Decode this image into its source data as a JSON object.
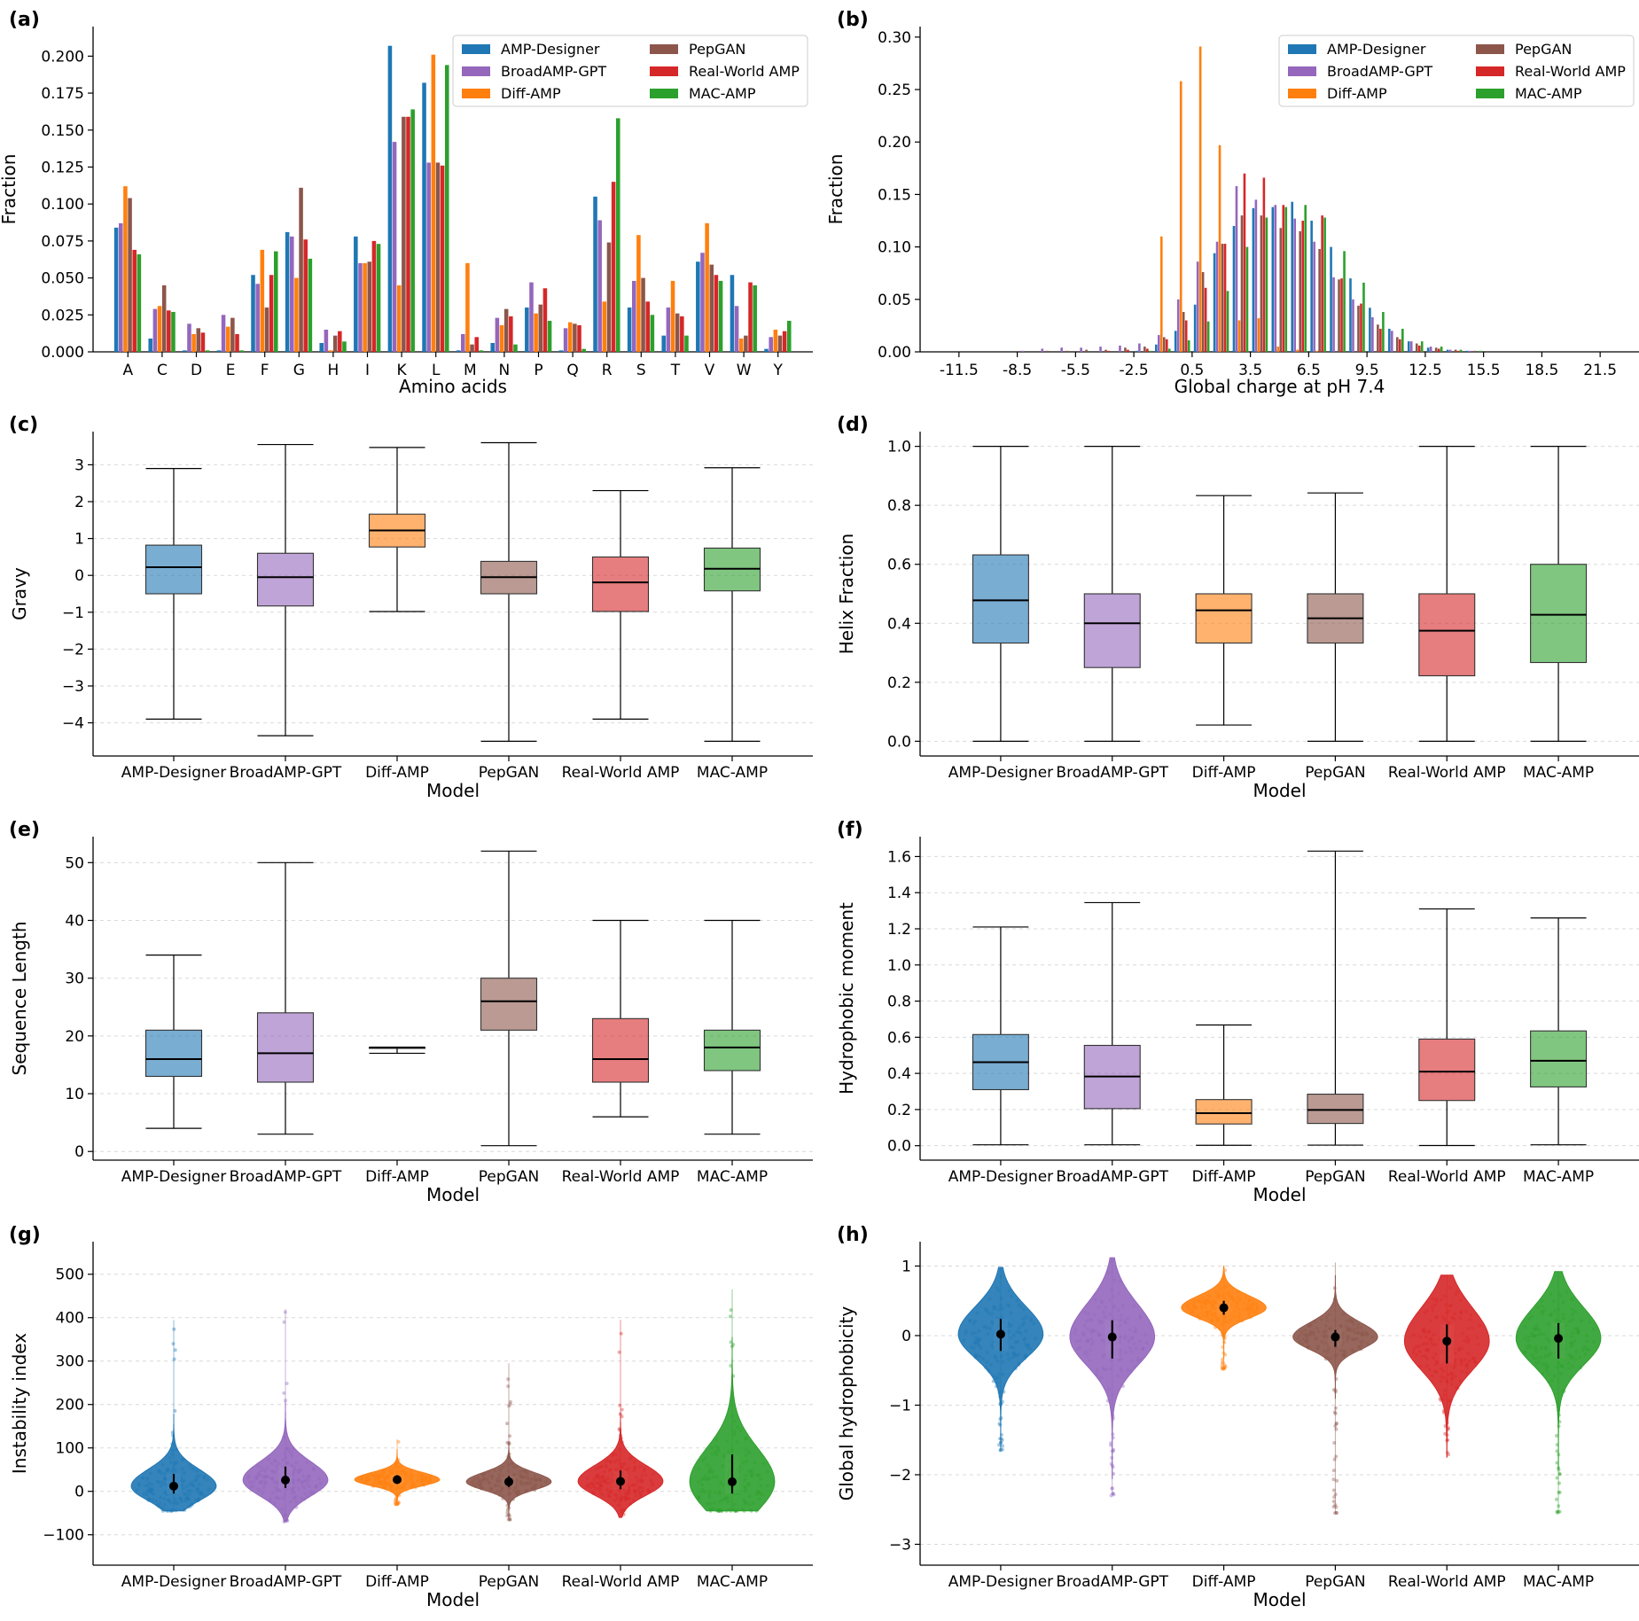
{
  "figure": {
    "panel_labels": [
      "(a)",
      "(b)",
      "(c)",
      "(d)",
      "(e)",
      "(f)",
      "(g)",
      "(h)"
    ]
  },
  "colors": {
    "AMP-Designer": "#1f77b4",
    "BroadAMP-GPT": "#9467bd",
    "Diff-AMP": "#ff7f0e",
    "PepGAN": "#8c564b",
    "Real-World AMP": "#d62728",
    "MAC-AMP": "#2ca02c"
  },
  "chart_data": [
    {
      "panel": "(a)",
      "type": "bar",
      "xlabel": "Amino acids",
      "ylabel": "Fraction",
      "ylim": [
        0,
        0.22
      ],
      "yticks": [
        0.0,
        0.025,
        0.05,
        0.075,
        0.1,
        0.125,
        0.15,
        0.175,
        0.2
      ],
      "ytick_labels": [
        "0.000",
        "0.025",
        "0.050",
        "0.075",
        "0.100",
        "0.125",
        "0.150",
        "0.175",
        "0.200"
      ],
      "legend_position": "top-right",
      "categories": [
        "A",
        "C",
        "D",
        "E",
        "F",
        "G",
        "H",
        "I",
        "K",
        "L",
        "M",
        "N",
        "P",
        "Q",
        "R",
        "S",
        "T",
        "V",
        "W",
        "Y"
      ],
      "series": [
        {
          "name": "AMP-Designer",
          "values": [
            0.084,
            0.009,
            0.001,
            0.001,
            0.052,
            0.081,
            0.006,
            0.078,
            0.207,
            0.182,
            0.001,
            0.006,
            0.03,
            0.001,
            0.105,
            0.03,
            0.011,
            0.061,
            0.052,
            0.002
          ]
        },
        {
          "name": "BroadAMP-GPT",
          "values": [
            0.087,
            0.029,
            0.019,
            0.025,
            0.046,
            0.078,
            0.015,
            0.06,
            0.142,
            0.128,
            0.012,
            0.023,
            0.047,
            0.016,
            0.089,
            0.048,
            0.03,
            0.067,
            0.031,
            0.01
          ]
        },
        {
          "name": "Diff-AMP",
          "values": [
            0.112,
            0.031,
            0.012,
            0.017,
            0.069,
            0.05,
            0.001,
            0.06,
            0.045,
            0.201,
            0.06,
            0.018,
            0.026,
            0.02,
            0.034,
            0.079,
            0.048,
            0.087,
            0.009,
            0.015
          ]
        },
        {
          "name": "PepGAN",
          "values": [
            0.104,
            0.045,
            0.016,
            0.023,
            0.03,
            0.111,
            0.011,
            0.061,
            0.159,
            0.128,
            0.005,
            0.029,
            0.032,
            0.019,
            0.074,
            0.05,
            0.026,
            0.059,
            0.011,
            0.011
          ]
        },
        {
          "name": "Real-World AMP",
          "values": [
            0.069,
            0.028,
            0.013,
            0.012,
            0.052,
            0.076,
            0.014,
            0.075,
            0.159,
            0.126,
            0.01,
            0.024,
            0.043,
            0.018,
            0.115,
            0.034,
            0.024,
            0.052,
            0.047,
            0.014
          ]
        },
        {
          "name": "MAC-AMP",
          "values": [
            0.066,
            0.027,
            0.001,
            0.001,
            0.068,
            0.063,
            0.007,
            0.073,
            0.164,
            0.194,
            0.001,
            0.005,
            0.021,
            0.002,
            0.158,
            0.025,
            0.011,
            0.048,
            0.045,
            0.021
          ]
        }
      ]
    },
    {
      "panel": "(b)",
      "type": "bar",
      "xlabel": "Global charge at pH 7.4",
      "ylabel": "Fraction",
      "ylim": [
        0,
        0.31
      ],
      "yticks": [
        0.0,
        0.05,
        0.1,
        0.15,
        0.2,
        0.25,
        0.3
      ],
      "ytick_labels": [
        "0.00",
        "0.05",
        "0.10",
        "0.15",
        "0.20",
        "0.25",
        "0.30"
      ],
      "xlim": [
        -13.5,
        23.5
      ],
      "xticks": [
        -11.5,
        -8.5,
        -5.5,
        -2.5,
        0.5,
        3.5,
        6.5,
        9.5,
        12.5,
        15.5,
        18.5,
        21.5
      ],
      "xtick_labels": [
        "-11.5",
        "-8.5",
        "-5.5",
        "-2.5",
        "0.5",
        "3.5",
        "6.5",
        "9.5",
        "12.5",
        "15.5",
        "18.5",
        "21.5"
      ],
      "legend_position": "top-right",
      "x": [
        -11,
        -10,
        -9,
        -8,
        -7,
        -6,
        -5,
        -4,
        -3,
        -2,
        -1,
        0,
        1,
        2,
        3,
        4,
        5,
        6,
        7,
        8,
        9,
        10,
        11,
        12,
        13,
        14,
        15,
        16,
        17,
        18,
        19,
        20,
        21
      ],
      "series": [
        {
          "name": "AMP-Designer",
          "values": [
            0,
            0,
            0,
            0,
            0,
            0,
            0,
            0,
            0,
            0.001,
            0.007,
            0.02,
            0.045,
            0.094,
            0.12,
            0.137,
            0.138,
            0.143,
            0.125,
            0.1,
            0.07,
            0.042,
            0.022,
            0.01,
            0.004,
            0.002,
            0.001,
            0,
            0,
            0,
            0,
            0,
            0
          ]
        },
        {
          "name": "BroadAMP-GPT",
          "values": [
            0,
            0,
            0,
            0.001,
            0.003,
            0.004,
            0.004,
            0.005,
            0.006,
            0.008,
            0.016,
            0.05,
            0.086,
            0.105,
            0.158,
            0.145,
            0.14,
            0.127,
            0.105,
            0.071,
            0.05,
            0.033,
            0.02,
            0.01,
            0.005,
            0.002,
            0.001,
            0,
            0,
            0,
            0,
            0,
            0
          ]
        },
        {
          "name": "Diff-AMP",
          "values": [
            0,
            0,
            0,
            0,
            0,
            0,
            0,
            0,
            0,
            0,
            0.11,
            0.258,
            0.291,
            0.197,
            0.03,
            0.032,
            0.005,
            0.002,
            0.001,
            0,
            0,
            0,
            0,
            0,
            0,
            0,
            0,
            0,
            0,
            0,
            0,
            0,
            0
          ]
        },
        {
          "name": "PepGAN",
          "values": [
            0,
            0,
            0,
            0,
            0.001,
            0.001,
            0.002,
            0.002,
            0.004,
            0.005,
            0.014,
            0.038,
            0.076,
            0.103,
            0.13,
            0.13,
            0.118,
            0.115,
            0.098,
            0.069,
            0.044,
            0.026,
            0.014,
            0.008,
            0.004,
            0.002,
            0.001,
            0,
            0,
            0,
            0,
            0,
            0
          ]
        },
        {
          "name": "Real-World AMP",
          "values": [
            0,
            0,
            0,
            0,
            0,
            0,
            0,
            0.001,
            0.002,
            0.003,
            0.012,
            0.03,
            0.061,
            0.103,
            0.17,
            0.166,
            0.14,
            0.125,
            0.13,
            0.07,
            0.046,
            0.022,
            0.012,
            0.006,
            0.003,
            0.001,
            0,
            0,
            0,
            0,
            0,
            0,
            0
          ]
        },
        {
          "name": "MAC-AMP",
          "values": [
            0,
            0,
            0,
            0,
            0,
            0,
            0,
            0,
            0,
            0.001,
            0.003,
            0.011,
            0.029,
            0.058,
            0.1,
            0.128,
            0.138,
            0.14,
            0.128,
            0.096,
            0.066,
            0.038,
            0.022,
            0.01,
            0.005,
            0.002,
            0.001,
            0,
            0,
            0,
            0,
            0,
            0
          ]
        }
      ]
    },
    {
      "panel": "(c)",
      "type": "box",
      "xlabel": "Model",
      "ylabel": "Gravy",
      "ylim": [
        -4.9,
        3.9
      ],
      "yticks": [
        -4,
        -3,
        -2,
        -1,
        0,
        1,
        2,
        3
      ],
      "ytick_labels": [
        "−4",
        "−3",
        "−2",
        "−1",
        "0",
        "1",
        "2",
        "3"
      ],
      "categories": [
        "AMP-Designer",
        "BroadAMP-GPT",
        "Diff-AMP",
        "PepGAN",
        "Real-World AMP",
        "MAC-AMP"
      ],
      "boxes": [
        {
          "min": -3.9,
          "q1": -0.5,
          "median": 0.22,
          "q3": 0.82,
          "max": 2.9
        },
        {
          "min": -4.35,
          "q1": -0.83,
          "median": -0.05,
          "q3": 0.6,
          "max": 3.55
        },
        {
          "min": -0.98,
          "q1": 0.77,
          "median": 1.22,
          "q3": 1.66,
          "max": 3.47
        },
        {
          "min": -4.5,
          "q1": -0.5,
          "median": -0.05,
          "q3": 0.38,
          "max": 3.6
        },
        {
          "min": -3.9,
          "q1": -0.98,
          "median": -0.19,
          "q3": 0.5,
          "max": 2.3
        },
        {
          "min": -4.5,
          "q1": -0.42,
          "median": 0.18,
          "q3": 0.74,
          "max": 2.92
        }
      ]
    },
    {
      "panel": "(d)",
      "type": "box",
      "xlabel": "Model",
      "ylabel": "Helix Fraction",
      "ylim": [
        -0.05,
        1.05
      ],
      "yticks": [
        0.0,
        0.2,
        0.4,
        0.6,
        0.8,
        1.0
      ],
      "ytick_labels": [
        "0.0",
        "0.2",
        "0.4",
        "0.6",
        "0.8",
        "1.0"
      ],
      "categories": [
        "AMP-Designer",
        "BroadAMP-GPT",
        "Diff-AMP",
        "PepGAN",
        "Real-World AMP",
        "MAC-AMP"
      ],
      "boxes": [
        {
          "min": 0.0,
          "q1": 0.333,
          "median": 0.478,
          "q3": 0.632,
          "max": 1.0
        },
        {
          "min": 0.0,
          "q1": 0.25,
          "median": 0.4,
          "q3": 0.5,
          "max": 1.0
        },
        {
          "min": 0.055,
          "q1": 0.333,
          "median": 0.444,
          "q3": 0.5,
          "max": 0.833
        },
        {
          "min": 0.0,
          "q1": 0.333,
          "median": 0.417,
          "q3": 0.5,
          "max": 0.842
        },
        {
          "min": 0.0,
          "q1": 0.222,
          "median": 0.375,
          "q3": 0.5,
          "max": 1.0
        },
        {
          "min": 0.0,
          "q1": 0.267,
          "median": 0.429,
          "q3": 0.6,
          "max": 1.0
        }
      ]
    },
    {
      "panel": "(e)",
      "type": "box",
      "xlabel": "Model",
      "ylabel": "Sequence Length",
      "ylim": [
        -1.5,
        54.5
      ],
      "yticks": [
        0,
        10,
        20,
        30,
        40,
        50
      ],
      "ytick_labels": [
        "0",
        "10",
        "20",
        "30",
        "40",
        "50"
      ],
      "categories": [
        "AMP-Designer",
        "BroadAMP-GPT",
        "Diff-AMP",
        "PepGAN",
        "Real-World AMP",
        "MAC-AMP"
      ],
      "boxes": [
        {
          "min": 4,
          "q1": 13,
          "median": 16,
          "q3": 21,
          "max": 34
        },
        {
          "min": 3,
          "q1": 12,
          "median": 17,
          "q3": 24,
          "max": 50
        },
        {
          "min": 17,
          "q1": 18,
          "median": 18,
          "q3": 18,
          "max": 18
        },
        {
          "min": 1,
          "q1": 21,
          "median": 26,
          "q3": 30,
          "max": 52
        },
        {
          "min": 6,
          "q1": 12,
          "median": 16,
          "q3": 23,
          "max": 40
        },
        {
          "min": 3,
          "q1": 14,
          "median": 18,
          "q3": 21,
          "max": 40
        }
      ]
    },
    {
      "panel": "(f)",
      "type": "box",
      "xlabel": "Model",
      "ylabel": "Hydrophobic moment",
      "ylim": [
        -0.08,
        1.71
      ],
      "yticks": [
        0.0,
        0.2,
        0.4,
        0.6,
        0.8,
        1.0,
        1.2,
        1.4,
        1.6
      ],
      "ytick_labels": [
        "0.0",
        "0.2",
        "0.4",
        "0.6",
        "0.8",
        "1.0",
        "1.2",
        "1.4",
        "1.6"
      ],
      "categories": [
        "AMP-Designer",
        "BroadAMP-GPT",
        "Diff-AMP",
        "PepGAN",
        "Real-World AMP",
        "MAC-AMP"
      ],
      "boxes": [
        {
          "min": 0.005,
          "q1": 0.31,
          "median": 0.462,
          "q3": 0.615,
          "max": 1.21
        },
        {
          "min": 0.005,
          "q1": 0.205,
          "median": 0.383,
          "q3": 0.555,
          "max": 1.345
        },
        {
          "min": 0.002,
          "q1": 0.12,
          "median": 0.18,
          "q3": 0.255,
          "max": 0.668
        },
        {
          "min": 0.003,
          "q1": 0.123,
          "median": 0.198,
          "q3": 0.285,
          "max": 1.63
        },
        {
          "min": 0.001,
          "q1": 0.25,
          "median": 0.41,
          "q3": 0.59,
          "max": 1.31
        },
        {
          "min": 0.005,
          "q1": 0.325,
          "median": 0.47,
          "q3": 0.635,
          "max": 1.26
        }
      ]
    },
    {
      "panel": "(g)",
      "type": "violin",
      "xlabel": "Model",
      "ylabel": "Instability index",
      "ylim": [
        -170,
        575
      ],
      "yticks": [
        -100,
        0,
        100,
        200,
        300,
        400,
        500
      ],
      "ytick_labels": [
        "−100",
        "0",
        "100",
        "200",
        "300",
        "400",
        "500"
      ],
      "categories": [
        "AMP-Designer",
        "BroadAMP-GPT",
        "Diff-AMP",
        "PepGAN",
        "Real-World AMP",
        "MAC-AMP"
      ],
      "violins": [
        {
          "min": -45,
          "q1": -5,
          "median": 12,
          "q3": 40,
          "max": 395
        },
        {
          "min": -70,
          "q1": 8,
          "median": 26,
          "q3": 57,
          "max": 420
        },
        {
          "min": -30,
          "q1": 18,
          "median": 27,
          "q3": 37,
          "max": 120
        },
        {
          "min": -65,
          "q1": 10,
          "median": 22,
          "q3": 35,
          "max": 295
        },
        {
          "min": -60,
          "q1": 5,
          "median": 23,
          "q3": 48,
          "max": 395
        },
        {
          "min": -45,
          "q1": -5,
          "median": 22,
          "q3": 85,
          "max": 465
        }
      ]
    },
    {
      "panel": "(h)",
      "type": "violin",
      "xlabel": "Model",
      "ylabel": "Global hydrophobicity",
      "ylim": [
        -3.3,
        1.35
      ],
      "yticks": [
        -3,
        -2,
        -1,
        0,
        1
      ],
      "ytick_labels": [
        "−3",
        "−2",
        "−1",
        "0",
        "1"
      ],
      "categories": [
        "AMP-Designer",
        "BroadAMP-GPT",
        "Diff-AMP",
        "PepGAN",
        "Real-World AMP",
        "MAC-AMP"
      ],
      "violins": [
        {
          "min": -1.65,
          "q1": -0.22,
          "median": 0.02,
          "q3": 0.24,
          "max": 0.98
        },
        {
          "min": -2.3,
          "q1": -0.33,
          "median": -0.02,
          "q3": 0.22,
          "max": 1.12
        },
        {
          "min": -0.48,
          "q1": 0.3,
          "median": 0.4,
          "q3": 0.5,
          "max": 1.0
        },
        {
          "min": -2.55,
          "q1": -0.16,
          "median": -0.02,
          "q3": 0.08,
          "max": 1.05
        },
        {
          "min": -1.75,
          "q1": -0.4,
          "median": -0.08,
          "q3": 0.16,
          "max": 0.87
        },
        {
          "min": -2.55,
          "q1": -0.33,
          "median": -0.04,
          "q3": 0.18,
          "max": 0.92
        }
      ]
    }
  ]
}
